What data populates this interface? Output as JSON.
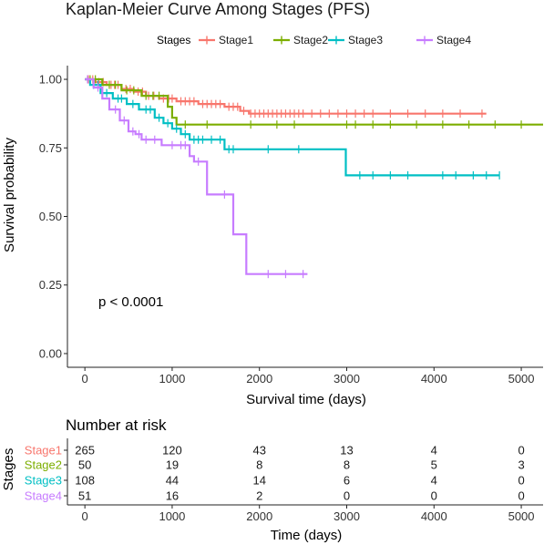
{
  "chart_data": {
    "type": "line",
    "title": "Kaplan-Meier Curve Among Stages (PFS)",
    "xlabel": "Survival time (days)",
    "ylabel": "Survival probability",
    "xlim": [
      -200,
      5250
    ],
    "ylim": [
      -0.05,
      1.05
    ],
    "x_ticks": [
      0,
      1000,
      2000,
      3000,
      4000,
      5000
    ],
    "y_ticks": [
      0.0,
      0.25,
      0.5,
      0.75,
      1.0
    ],
    "x_tick_labels": [
      "0",
      "1000",
      "2000",
      "3000",
      "4000",
      "5000"
    ],
    "y_tick_labels": [
      "0.00",
      "0.25",
      "0.50",
      "0.75",
      "1.00"
    ],
    "grid": false,
    "legend": {
      "title": "Stages",
      "position": "top",
      "items": [
        "Stage1",
        "Stage2",
        "Stage3",
        "Stage4"
      ]
    },
    "annotation": "p < 0.0001",
    "series": [
      {
        "name": "Stage1",
        "color": "#F8766D",
        "steps": [
          [
            0,
            1.0
          ],
          [
            120,
            0.99
          ],
          [
            250,
            0.98
          ],
          [
            420,
            0.965
          ],
          [
            560,
            0.955
          ],
          [
            700,
            0.94
          ],
          [
            850,
            0.93
          ],
          [
            1050,
            0.92
          ],
          [
            1300,
            0.91
          ],
          [
            1600,
            0.9
          ],
          [
            1780,
            0.885
          ],
          [
            1880,
            0.875
          ],
          [
            4600,
            0.875
          ]
        ],
        "censor_x": [
          40,
          90,
          160,
          210,
          300,
          340,
          380,
          470,
          520,
          610,
          660,
          730,
          790,
          900,
          960,
          1000,
          1100,
          1150,
          1200,
          1250,
          1350,
          1400,
          1450,
          1500,
          1550,
          1650,
          1700,
          1750,
          1820,
          1900,
          1950,
          2000,
          2050,
          2100,
          2150,
          2200,
          2250,
          2300,
          2350,
          2400,
          2450,
          2500,
          2600,
          2700,
          2800,
          2900,
          3000,
          3100,
          3200,
          3300,
          3500,
          3700,
          3900,
          4100,
          4300,
          4550
        ]
      },
      {
        "name": "Stage2",
        "color": "#7CAE00",
        "steps": [
          [
            0,
            1.0
          ],
          [
            200,
            0.98
          ],
          [
            420,
            0.96
          ],
          [
            650,
            0.94
          ],
          [
            950,
            0.9
          ],
          [
            1000,
            0.86
          ],
          [
            1050,
            0.835
          ],
          [
            5250,
            0.835
          ]
        ],
        "censor_x": [
          60,
          120,
          280,
          350,
          480,
          560,
          700,
          780,
          850,
          1150,
          1400,
          1900,
          2200,
          2400,
          3000,
          3100,
          3300,
          3500,
          3800,
          4100,
          4400,
          4700,
          5000
        ]
      },
      {
        "name": "Stage3",
        "color": "#00BFC4",
        "steps": [
          [
            0,
            1.0
          ],
          [
            60,
            0.98
          ],
          [
            180,
            0.95
          ],
          [
            320,
            0.93
          ],
          [
            480,
            0.91
          ],
          [
            620,
            0.89
          ],
          [
            800,
            0.86
          ],
          [
            900,
            0.84
          ],
          [
            1000,
            0.82
          ],
          [
            1100,
            0.8
          ],
          [
            1200,
            0.78
          ],
          [
            1600,
            0.745
          ],
          [
            2970,
            0.745
          ],
          [
            2990,
            0.65
          ],
          [
            4750,
            0.65
          ]
        ],
        "censor_x": [
          100,
          150,
          250,
          380,
          420,
          550,
          700,
          750,
          850,
          950,
          1050,
          1150,
          1250,
          1300,
          1350,
          1450,
          1550,
          1650,
          1700,
          2100,
          2450,
          3150,
          3300,
          3500,
          3700,
          4100,
          4250,
          4450,
          4600,
          4750
        ]
      },
      {
        "name": "Stage4",
        "color": "#C77CFF",
        "steps": [
          [
            0,
            1.0
          ],
          [
            100,
            0.97
          ],
          [
            200,
            0.93
          ],
          [
            280,
            0.89
          ],
          [
            400,
            0.85
          ],
          [
            500,
            0.81
          ],
          [
            580,
            0.8
          ],
          [
            650,
            0.78
          ],
          [
            880,
            0.76
          ],
          [
            1200,
            0.72
          ],
          [
            1250,
            0.7
          ],
          [
            1400,
            0.58
          ],
          [
            1700,
            0.435
          ],
          [
            1850,
            0.29
          ],
          [
            2550,
            0.29
          ]
        ],
        "censor_x": [
          30,
          150,
          350,
          450,
          550,
          620,
          700,
          800,
          1000,
          1100,
          1150,
          1300,
          1600,
          2100,
          2300,
          2500
        ]
      }
    ]
  },
  "risk_table": {
    "title": "Number at risk",
    "ylabel": "Stages",
    "xlabel": "Time (days)",
    "times": [
      0,
      1000,
      2000,
      3000,
      4000,
      5000
    ],
    "time_labels": [
      "0",
      "1000",
      "2000",
      "3000",
      "4000",
      "5000"
    ],
    "rows": [
      {
        "label": "Stage1",
        "color": "#F8766D",
        "values": [
          "265",
          "120",
          "43",
          "13",
          "4",
          "0"
        ]
      },
      {
        "label": "Stage2",
        "color": "#7CAE00",
        "values": [
          "50",
          "19",
          "8",
          "8",
          "5",
          "3"
        ]
      },
      {
        "label": "Stage3",
        "color": "#00BFC4",
        "values": [
          "108",
          "44",
          "14",
          "6",
          "4",
          "0"
        ]
      },
      {
        "label": "Stage4",
        "color": "#C77CFF",
        "values": [
          "51",
          "16",
          "2",
          "0",
          "0",
          "0"
        ]
      }
    ]
  }
}
